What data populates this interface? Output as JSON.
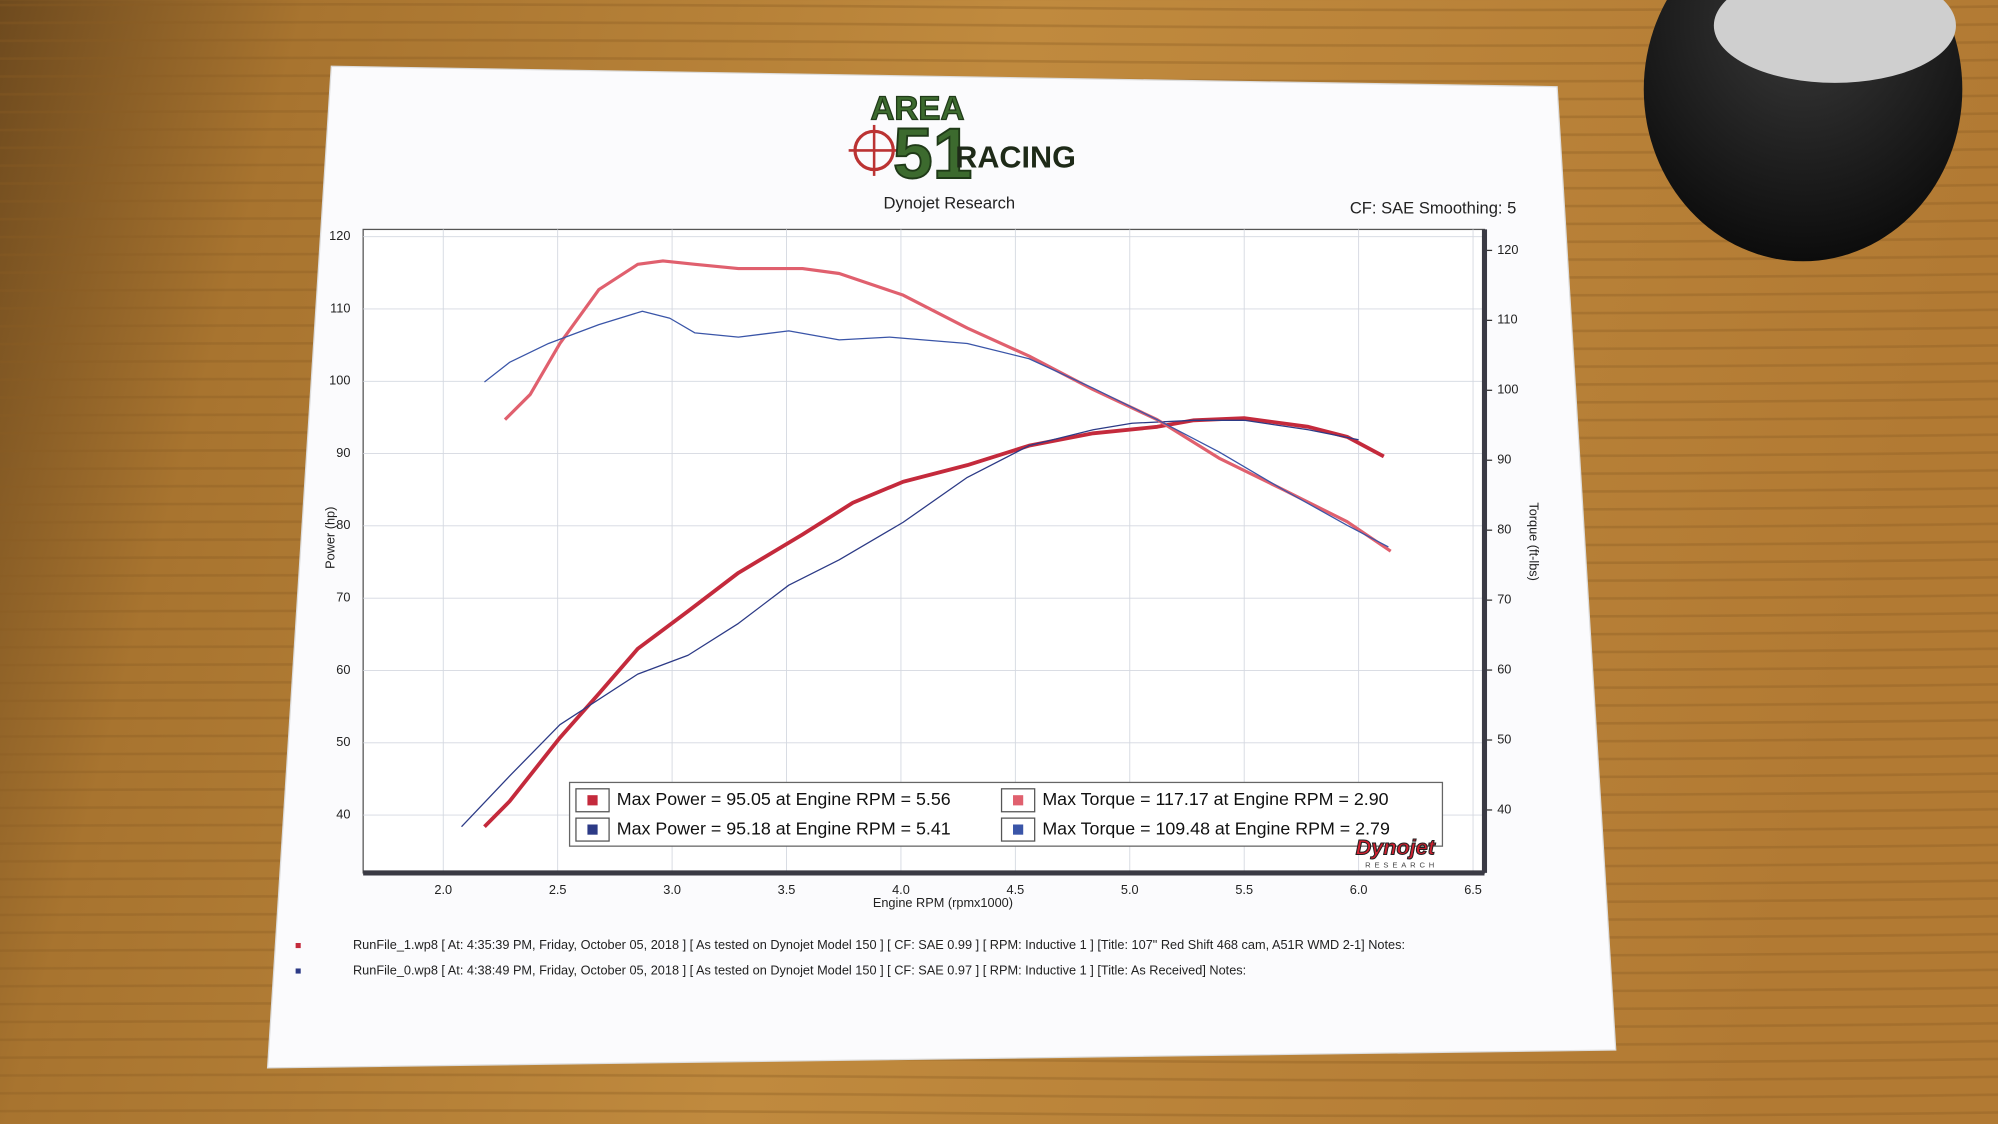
{
  "chart_data": {
    "type": "line",
    "title": "Dynojet Research",
    "subtitle": "CF: SAE Smoothing: 5",
    "brand": [
      "AREA",
      "51",
      "RACING"
    ],
    "watermark": [
      "Dynojet",
      "RESEARCH"
    ],
    "x_label": "Engine RPM (rpmx1000)",
    "y_label": "Power (hp)",
    "y2_label": "Torque (ft-lbs)",
    "xlim": [
      1.65,
      6.55
    ],
    "xticks": [
      {
        "value": 2,
        "label": "2.0"
      },
      2.5,
      {
        "value": 3,
        "label": "3.0"
      },
      3.5,
      {
        "value": 4,
        "label": "4.0"
      },
      4.5,
      {
        "value": 5,
        "label": "5.0"
      },
      5.5,
      {
        "value": 6,
        "label": "6.0"
      },
      6.5
    ],
    "ylim": [
      32,
      121
    ],
    "yticks": [
      40,
      50,
      60,
      70,
      80,
      90,
      100,
      110,
      120
    ],
    "y2lim": [
      31,
      123
    ],
    "y2ticks": [
      40,
      50,
      60,
      70,
      80,
      90,
      100,
      110,
      120
    ],
    "grid": true,
    "series": [
      {
        "name": "Max Power = 95.05 at Engine RPM = 5.56",
        "color": "#c42a3c",
        "width": 3,
        "x": [
          2.18,
          2.29,
          2.51,
          2.68,
          2.85,
          3.07,
          3.29,
          3.57,
          3.79,
          4.01,
          4.29,
          4.56,
          4.84,
          5.12,
          5.28,
          5.5,
          5.78,
          5.95,
          6.11
        ],
        "values": [
          38.4,
          41.9,
          50.7,
          56.8,
          63.0,
          68.2,
          73.5,
          78.8,
          83.2,
          86.1,
          88.4,
          91.1,
          92.8,
          93.7,
          94.6,
          94.9,
          93.7,
          92.3,
          89.6
        ]
      },
      {
        "name": "Max Power = 95.18 at Engine RPM = 5.41",
        "color": "#2c3a86",
        "width": 1,
        "x": [
          2.08,
          2.29,
          2.51,
          2.85,
          3.07,
          3.29,
          3.51,
          3.73,
          4.01,
          4.29,
          4.56,
          4.84,
          5.01,
          5.28,
          5.5,
          5.78,
          6.0
        ],
        "values": [
          38.4,
          45.4,
          52.5,
          59.5,
          62.1,
          66.5,
          71.8,
          75.3,
          80.5,
          86.7,
          91.1,
          93.3,
          94.2,
          94.6,
          94.6,
          93.3,
          91.9
        ]
      },
      {
        "name": "Max Torque = 117.17 at Engine RPM = 2.90",
        "color": "#e0606e",
        "width": 2.5,
        "axis": "y2",
        "x": [
          2.27,
          2.38,
          2.51,
          2.68,
          2.85,
          2.96,
          3.1,
          3.29,
          3.57,
          3.73,
          4.01,
          4.29,
          4.56,
          4.84,
          5.12,
          5.39,
          5.67,
          5.95,
          6.14
        ],
        "values": [
          95.8,
          99.4,
          106.7,
          114.4,
          118.0,
          118.5,
          118.0,
          117.4,
          117.4,
          116.7,
          113.6,
          108.9,
          104.9,
          100.1,
          95.8,
          90.3,
          85.8,
          81.2,
          77.0
        ]
      },
      {
        "name": "Max Torque = 109.48 at Engine RPM = 2.79",
        "color": "#3a55a8",
        "width": 1,
        "axis": "y2",
        "x": [
          2.18,
          2.29,
          2.46,
          2.68,
          2.87,
          2.99,
          3.1,
          3.29,
          3.51,
          3.73,
          3.95,
          4.29,
          4.56,
          4.84,
          5.12,
          5.39,
          5.67,
          5.95,
          6.13
        ],
        "values": [
          101.2,
          104.0,
          106.7,
          109.4,
          111.3,
          110.3,
          108.2,
          107.6,
          108.5,
          107.2,
          107.6,
          106.7,
          104.5,
          100.3,
          95.8,
          91.2,
          85.8,
          80.7,
          77.6
        ]
      }
    ],
    "notes": [
      {
        "text": "RunFile_1.wp8 [ At: 4:35:39 PM, Friday, October 05, 2018 ] [ As tested on Dynojet Model 150 ] [ CF: SAE 0.99 ] [ RPM: Inductive 1 ] [Title: 107\" Red Shift 468 cam, A51R WMD 2-1]  Notes:",
        "color": "#c42a3c"
      },
      {
        "text": "RunFile_0.wp8 [ At: 4:38:49 PM, Friday, October 05, 2018 ] [ As tested on Dynojet Model 150 ] [ CF: SAE 0.97 ] [ RPM: Inductive 1 ] [Title: As Received]  Notes:",
        "color": "#2c3a86"
      }
    ]
  }
}
